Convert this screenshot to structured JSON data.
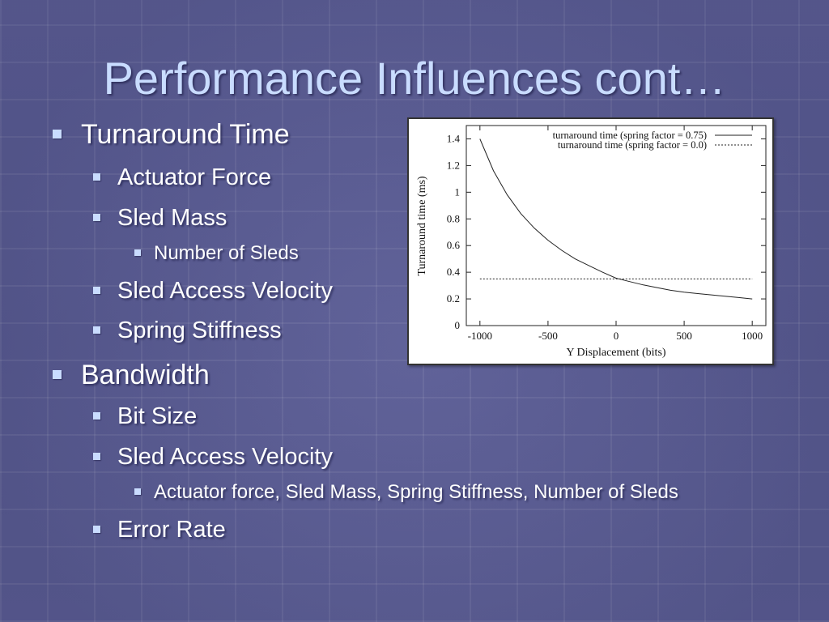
{
  "slide": {
    "title": "Performance Influences cont…",
    "bullets": {
      "turnaround": "Turnaround Time",
      "actuator_force": "Actuator Force",
      "sled_mass": "Sled Mass",
      "number_of_sleds": "Number of Sleds",
      "sled_access_velocity_1": "Sled Access Velocity",
      "spring_stiffness": "Spring Stiffness",
      "bandwidth": "Bandwidth",
      "bit_size": "Bit Size",
      "sled_access_velocity_2": "Sled Access Velocity",
      "velocity_factors": "Actuator force, Sled Mass, Spring Stiffness, Number of Sleds",
      "error_rate": "Error Rate"
    }
  },
  "colors": {
    "title": "#c9dcff",
    "text": "#ffffff",
    "bullet": "#c9dcff",
    "background": "#5b5d97"
  },
  "chart_data": {
    "type": "line",
    "title": "",
    "xlabel": "Y Displacement (bits)",
    "ylabel": "Turnaround time (ms)",
    "xlim": [
      -1100,
      1100
    ],
    "ylim": [
      0,
      1.5
    ],
    "xticks": [
      -1000,
      -500,
      0,
      500,
      1000
    ],
    "xtick_labels": [
      "-1000",
      "-500",
      "0",
      "500",
      "1000"
    ],
    "yticks": [
      0,
      0.2,
      0.4,
      0.6,
      0.8,
      1,
      1.2,
      1.4
    ],
    "ytick_labels": [
      "0",
      "0.2",
      "0.4",
      "0.6",
      "0.8",
      "1",
      "1.2",
      "1.4"
    ],
    "grid": false,
    "legend_position": "top-right",
    "series": [
      {
        "name": "turnaround time (spring factor = 0.75)",
        "style": "solid",
        "x": [
          -1000,
          -900,
          -800,
          -700,
          -600,
          -500,
          -400,
          -300,
          -200,
          -100,
          0,
          100,
          200,
          300,
          400,
          500,
          600,
          700,
          800,
          900,
          1000
        ],
        "y": [
          1.4,
          1.16,
          0.98,
          0.84,
          0.73,
          0.64,
          0.565,
          0.5,
          0.45,
          0.4,
          0.355,
          0.33,
          0.305,
          0.285,
          0.265,
          0.25,
          0.24,
          0.23,
          0.22,
          0.21,
          0.2
        ]
      },
      {
        "name": "turnaround time (spring factor = 0.0)",
        "style": "dashed",
        "x": [
          -1000,
          1000
        ],
        "y": [
          0.35,
          0.35
        ]
      }
    ]
  }
}
